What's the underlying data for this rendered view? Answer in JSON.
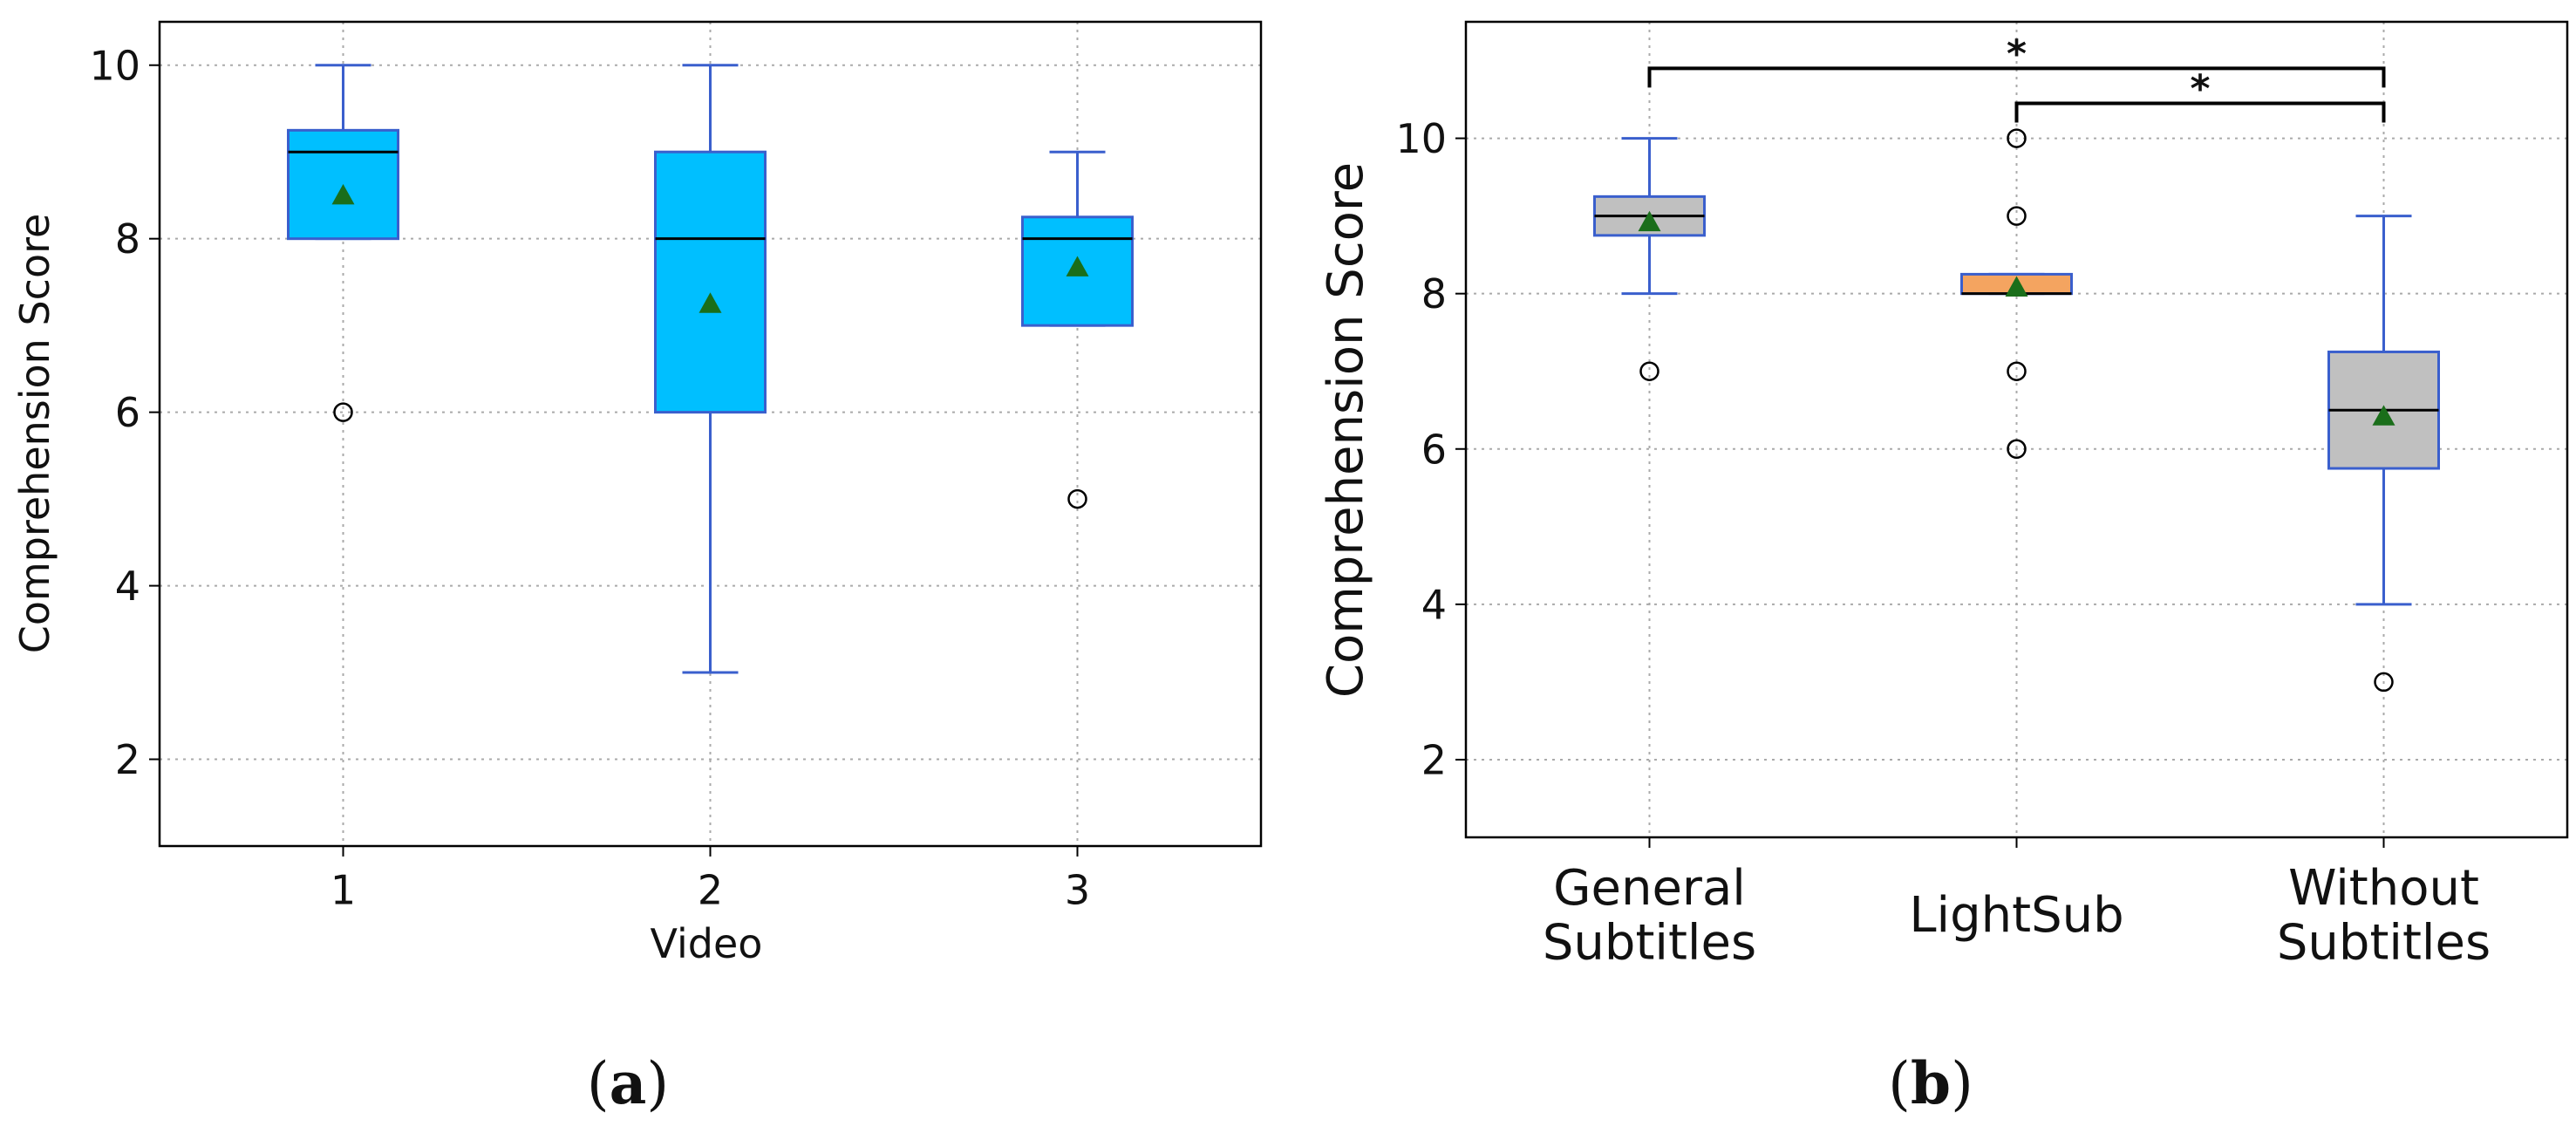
{
  "figure": {
    "panel_a_label": "a",
    "panel_b_label": "b"
  },
  "chart_data": [
    {
      "type": "boxplot",
      "panel": "a",
      "xlabel": "Video",
      "ylabel": "Comprehension Score",
      "ylim": [
        1,
        10.5
      ],
      "yticks": [
        2,
        4,
        6,
        8,
        10
      ],
      "grid": true,
      "box_color": "#00bfff",
      "edge_color": "#3a5fcd",
      "median_color": "#000000",
      "mean_marker_color": "#1a6e1a",
      "categories": [
        "1",
        "2",
        "3"
      ],
      "boxes": [
        {
          "label": "1",
          "whisker_low": 8,
          "q1": 8,
          "median": 9,
          "q3": 9.25,
          "whisker_high": 10,
          "mean": 8.5,
          "outliers": [
            6
          ]
        },
        {
          "label": "2",
          "whisker_low": 3,
          "q1": 6,
          "median": 8,
          "q3": 9,
          "whisker_high": 10,
          "mean": 7.25,
          "outliers": []
        },
        {
          "label": "3",
          "whisker_low": 7,
          "q1": 7,
          "median": 8,
          "q3": 8.25,
          "whisker_high": 9,
          "mean": 7.67,
          "outliers": [
            5
          ]
        }
      ]
    },
    {
      "type": "boxplot",
      "panel": "b",
      "xlabel": "",
      "ylabel": "Comprehension Score",
      "ylim": [
        1,
        11.5
      ],
      "yticks": [
        2,
        4,
        6,
        8,
        10
      ],
      "grid": true,
      "edge_color": "#3a5fcd",
      "median_color": "#000000",
      "mean_marker_color": "#1a6e1a",
      "categories": [
        "General\nSubtitles",
        "LightSub",
        "Without\nSubtitles"
      ],
      "boxes": [
        {
          "label_lines": [
            "General",
            "Subtitles"
          ],
          "color": "#c0c0c0",
          "whisker_low": 8,
          "q1": 8.75,
          "median": 9,
          "q3": 9.25,
          "whisker_high": 10,
          "mean": 8.92,
          "outliers": [
            7
          ]
        },
        {
          "label_lines": [
            "LightSub"
          ],
          "color": "#f4a460",
          "whisker_low": 8,
          "q1": 8,
          "median": 8,
          "q3": 8.25,
          "whisker_high": 8.25,
          "mean": 8.08,
          "outliers": [
            10,
            9,
            7,
            6
          ]
        },
        {
          "label_lines": [
            "Without",
            "Subtitles"
          ],
          "color": "#c0c0c0",
          "whisker_low": 4,
          "q1": 5.75,
          "median": 6.5,
          "q3": 7.25,
          "whisker_high": 9,
          "mean": 6.42,
          "outliers": [
            3
          ]
        }
      ],
      "significance": [
        {
          "from": 0,
          "to": 2,
          "y": 10.9,
          "label": "*"
        },
        {
          "from": 1,
          "to": 2,
          "y": 10.45,
          "label": "*"
        }
      ]
    }
  ]
}
